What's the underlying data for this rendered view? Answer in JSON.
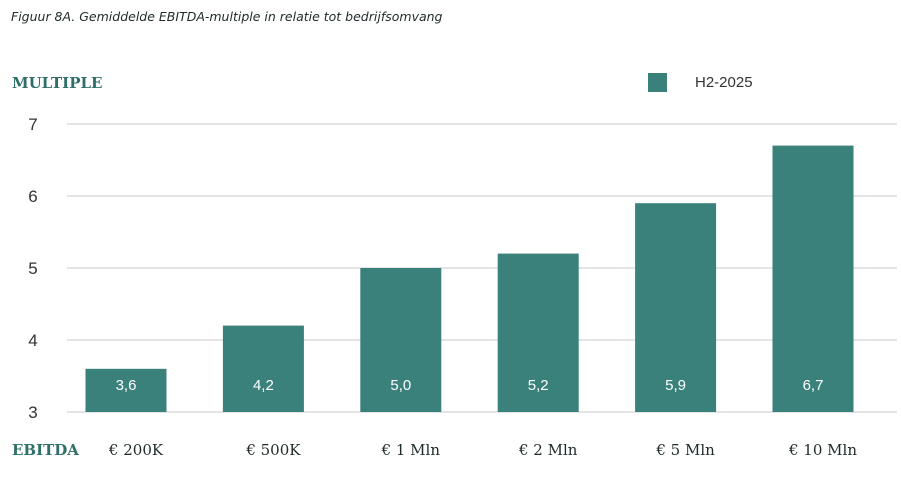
{
  "caption": "Figuur 8A. Gemiddelde EBITDA-multiple in relatie tot bedrijfsomvang",
  "colors": {
    "bar": "#3a817c",
    "grid": "#c8c8c8",
    "axis_title": "#2f6f6a"
  },
  "chart_data": {
    "type": "bar",
    "ylabel": "MULTIPLE",
    "xlabel": "EBITDA",
    "categories": [
      "€ 200K",
      "€ 500K",
      "€ 1 Mln",
      "€ 2 Mln",
      "€ 5 Mln",
      "€ 10 Mln"
    ],
    "series": [
      {
        "name": "H2-2025",
        "values": [
          3.6,
          4.2,
          5.0,
          5.2,
          5.9,
          6.7
        ]
      }
    ],
    "data_labels": [
      "3,6",
      "4,2",
      "5,0",
      "5,2",
      "5,9",
      "6,7"
    ],
    "ylim": [
      3,
      7
    ],
    "yticks": [
      3,
      4,
      5,
      6,
      7
    ],
    "grid": true,
    "legend": "top-right"
  }
}
